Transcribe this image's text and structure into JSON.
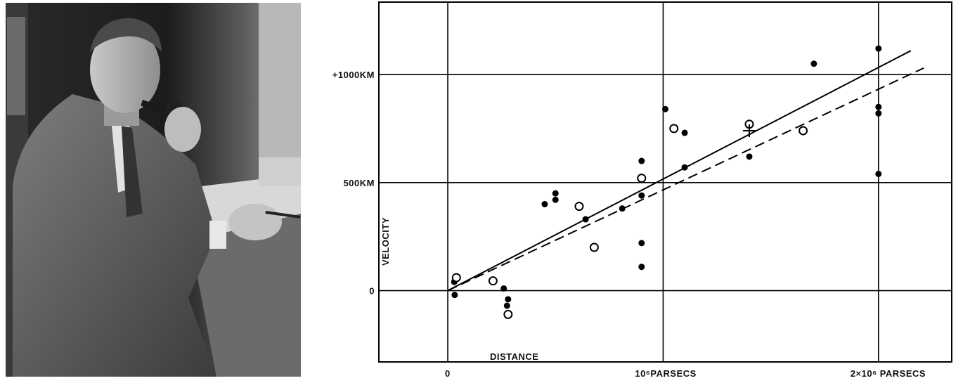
{
  "photo": {
    "alt": "Edwin Hubble at his desk with a pipe"
  },
  "chart_data": {
    "type": "scatter",
    "title": "",
    "xlabel": "DISTANCE",
    "ylabel": "VELOCITY",
    "x_unit": "parsecs",
    "y_unit": "km/s",
    "xlim": [
      -320000,
      2340000
    ],
    "ylim": [
      -330000,
      1335
    ],
    "ylim_units": [
      -330,
      1335
    ],
    "x_ticks": [
      {
        "value": 0,
        "label": "0"
      },
      {
        "value": 1000000,
        "label": "10⁶PARSECS"
      },
      {
        "value": 2000000,
        "label": "2×10⁶ PARSECS"
      }
    ],
    "y_ticks": [
      {
        "value": 0,
        "label": "0"
      },
      {
        "value": 500,
        "label": "500KM"
      },
      {
        "value": 1000,
        "label": "+1000KM"
      }
    ],
    "grid": true,
    "series": [
      {
        "marker": "filled",
        "points": [
          [
            32000,
            -20
          ],
          [
            30000,
            40
          ],
          [
            210000,
            40
          ],
          [
            260000,
            10
          ],
          [
            275000,
            -70
          ],
          [
            280000,
            -40
          ],
          [
            450000,
            400
          ],
          [
            500000,
            420
          ],
          [
            500000,
            450
          ],
          [
            640000,
            330
          ],
          [
            810000,
            380
          ],
          [
            900000,
            600
          ],
          [
            900000,
            440
          ],
          [
            900000,
            220
          ],
          [
            900000,
            110
          ],
          [
            1010000,
            840
          ],
          [
            1100000,
            730
          ],
          [
            1100000,
            570
          ],
          [
            1400000,
            620
          ],
          [
            1700000,
            1050
          ],
          [
            2000000,
            1120
          ],
          [
            2000000,
            850
          ],
          [
            2000000,
            820
          ],
          [
            2000000,
            540
          ]
        ]
      },
      {
        "marker": "open",
        "points": [
          [
            40000,
            60
          ],
          [
            210000,
            45
          ],
          [
            280000,
            -110
          ],
          [
            610000,
            390
          ],
          [
            680000,
            200
          ],
          [
            900000,
            520
          ],
          [
            1050000,
            750
          ],
          [
            1400000,
            770
          ],
          [
            1650000,
            740
          ]
        ]
      },
      {
        "marker": "cross",
        "points": [
          [
            1400000,
            740
          ]
        ]
      }
    ],
    "lines": [
      {
        "style": "solid",
        "from": [
          0,
          0
        ],
        "to": [
          2150000,
          1110
        ]
      },
      {
        "style": "dashed",
        "from": [
          0,
          0
        ],
        "to": [
          2210000,
          1030
        ]
      }
    ]
  }
}
